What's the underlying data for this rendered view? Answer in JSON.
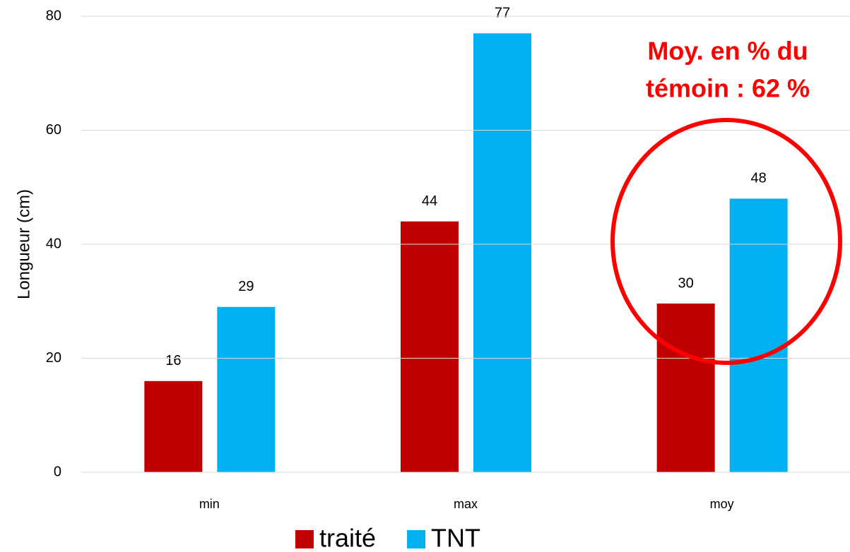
{
  "chart_data": {
    "type": "bar",
    "categories": [
      "min",
      "max",
      "moy"
    ],
    "series": [
      {
        "name": "traité",
        "color": "#c00000",
        "values": [
          16,
          44,
          29.6
        ],
        "value_labels": [
          "16",
          "44",
          "30"
        ]
      },
      {
        "name": "TNT",
        "color": "#00b0f0",
        "values": [
          29,
          77,
          48
        ]
      }
    ],
    "ylabel": "Longueur (cm)",
    "ylim": [
      0,
      80
    ],
    "yticks": [
      0,
      20,
      40,
      60,
      80
    ],
    "grid": true,
    "annotation": [
      "Moy. en % du",
      "témoin : 62 %"
    ],
    "legend": "bottom"
  }
}
